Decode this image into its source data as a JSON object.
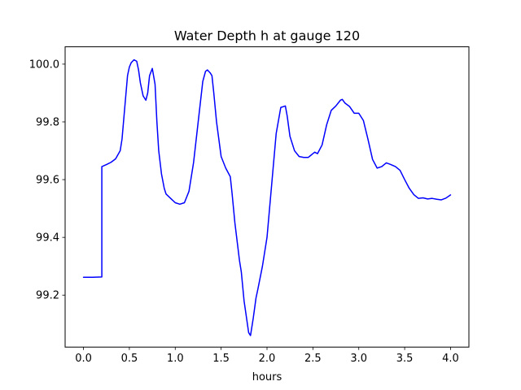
{
  "chart_data": {
    "type": "line",
    "title": "Water Depth h at gauge 120",
    "xlabel": "hours",
    "ylabel": "",
    "xlim": [
      -0.2,
      4.2
    ],
    "ylim": [
      99.02,
      100.06
    ],
    "xticks": [
      0.0,
      0.5,
      1.0,
      1.5,
      2.0,
      2.5,
      3.0,
      3.5,
      4.0
    ],
    "xtick_labels": [
      "0.0",
      "0.5",
      "1.0",
      "1.5",
      "2.0",
      "2.5",
      "3.0",
      "3.5",
      "4.0"
    ],
    "yticks": [
      99.2,
      99.4,
      99.6,
      99.8,
      100.0
    ],
    "ytick_labels": [
      "99.2",
      "99.4",
      "99.6",
      "99.8",
      "100.0"
    ],
    "grid": false,
    "legend": "none",
    "series": [
      {
        "color": "#0000ff",
        "x": [
          0.0,
          0.1,
          0.2,
          0.2,
          0.25,
          0.3,
          0.35,
          0.4,
          0.42,
          0.45,
          0.48,
          0.5,
          0.52,
          0.55,
          0.58,
          0.6,
          0.62,
          0.65,
          0.68,
          0.7,
          0.72,
          0.75,
          0.78,
          0.8,
          0.82,
          0.85,
          0.88,
          0.9,
          0.95,
          1.0,
          1.05,
          1.1,
          1.15,
          1.2,
          1.25,
          1.3,
          1.33,
          1.35,
          1.38,
          1.4,
          1.42,
          1.45,
          1.5,
          1.55,
          1.6,
          1.62,
          1.65,
          1.7,
          1.72,
          1.75,
          1.8,
          1.82,
          1.85,
          1.88,
          1.9,
          1.95,
          2.0,
          2.05,
          2.1,
          2.15,
          2.2,
          2.22,
          2.25,
          2.3,
          2.35,
          2.4,
          2.45,
          2.5,
          2.52,
          2.55,
          2.6,
          2.65,
          2.7,
          2.75,
          2.8,
          2.82,
          2.85,
          2.9,
          2.95,
          3.0,
          3.05,
          3.1,
          3.15,
          3.2,
          3.25,
          3.3,
          3.35,
          3.4,
          3.45,
          3.5,
          3.55,
          3.6,
          3.65,
          3.7,
          3.75,
          3.8,
          3.85,
          3.9,
          3.95,
          4.0
        ],
        "y": [
          99.262,
          99.262,
          99.263,
          99.645,
          99.652,
          99.66,
          99.672,
          99.7,
          99.74,
          99.85,
          99.96,
          99.99,
          100.005,
          100.015,
          100.01,
          99.98,
          99.935,
          99.89,
          99.875,
          99.9,
          99.96,
          99.985,
          99.93,
          99.8,
          99.7,
          99.62,
          99.57,
          99.55,
          99.535,
          99.52,
          99.515,
          99.52,
          99.56,
          99.66,
          99.8,
          99.94,
          99.975,
          99.98,
          99.97,
          99.96,
          99.9,
          99.8,
          99.68,
          99.64,
          99.61,
          99.55,
          99.45,
          99.32,
          99.28,
          99.18,
          99.07,
          99.06,
          99.12,
          99.19,
          99.22,
          99.3,
          99.4,
          99.58,
          99.76,
          99.85,
          99.855,
          99.82,
          99.75,
          99.7,
          99.68,
          99.677,
          99.677,
          99.69,
          99.695,
          99.69,
          99.72,
          99.79,
          99.84,
          99.855,
          99.875,
          99.878,
          99.865,
          99.853,
          99.83,
          99.83,
          99.805,
          99.74,
          99.67,
          99.64,
          99.645,
          99.658,
          99.652,
          99.645,
          99.632,
          99.6,
          99.57,
          99.548,
          99.535,
          99.537,
          99.533,
          99.535,
          99.532,
          99.53,
          99.536,
          99.547
        ]
      }
    ]
  }
}
